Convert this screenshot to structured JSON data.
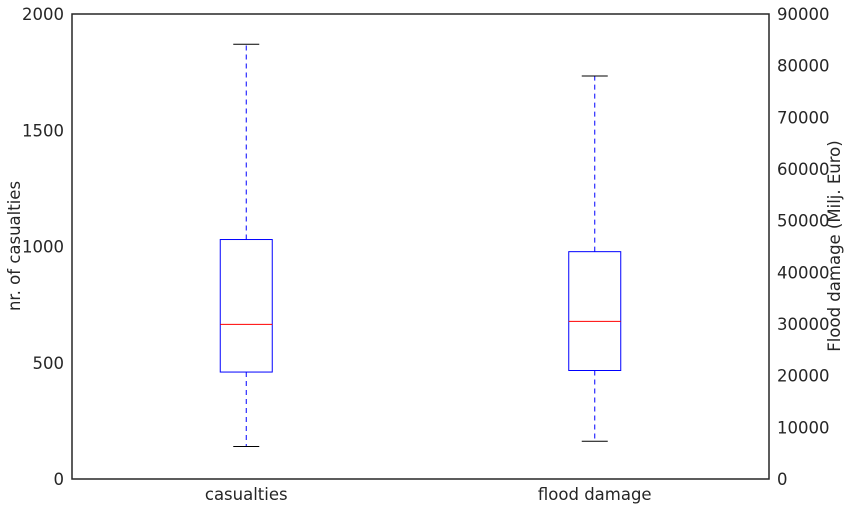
{
  "chart_data": {
    "type": "boxplot",
    "categories": [
      "casualties",
      "flood damage"
    ],
    "left_axis": {
      "label": "nr. of casualties",
      "ylim": [
        0,
        2000
      ],
      "ticks": [
        "0",
        "500",
        "1000",
        "1500",
        "2000"
      ]
    },
    "right_axis": {
      "label": "Flood damage (Milj. Euro)",
      "ylim": [
        0,
        90000
      ],
      "ticks": [
        "0",
        "10000",
        "20000",
        "30000",
        "40000",
        "50000",
        "60000",
        "70000",
        "80000",
        "90000"
      ]
    },
    "boxes": [
      {
        "category": "casualties",
        "axis": "left",
        "whisker_low": 140,
        "q1": 460,
        "median": 665,
        "q3": 1030,
        "whisker_high": 1870
      },
      {
        "category": "flood damage",
        "axis": "right",
        "whisker_low": 7300,
        "q1": 21000,
        "median": 30500,
        "q3": 44000,
        "whisker_high": 78000
      }
    ],
    "grid": false,
    "colors": {
      "box": "#0000ff",
      "median": "#ff0000",
      "cap": "#000000",
      "frame": "#262626"
    }
  }
}
